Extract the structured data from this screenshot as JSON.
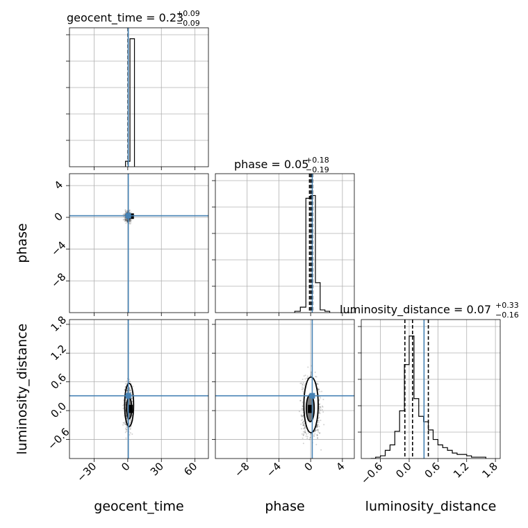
{
  "chart_data": {
    "type": "corner",
    "truth_color": "#4682b4",
    "line_color": "#000000",
    "parameters": [
      {
        "name": "geocent_time",
        "title_main": "geocent_time = 0.23",
        "title_plus": "+0.09",
        "title_minus": "−0.09",
        "median": 0.23,
        "q_low": 0.14,
        "q_high": 0.32,
        "truth": 0.5,
        "range": [
          -52,
          72
        ],
        "ticks": [
          -30,
          0,
          30,
          60
        ],
        "tick_labels": [
          "−30",
          "0",
          "30",
          "60"
        ],
        "hist_bins": [
          -2,
          2,
          6
        ],
        "hist_values": [
          0.04,
          0.94
        ]
      },
      {
        "name": "phase",
        "title_main": "phase = 0.05",
        "title_plus": "+0.18",
        "title_minus": "−0.19",
        "median": 0.05,
        "q_low": -0.14,
        "q_high": 0.23,
        "truth": 0.2,
        "range": [
          -12,
          5.5
        ],
        "ticks": [
          -8,
          -4,
          0,
          4
        ],
        "tick_labels": [
          "−8",
          "−4",
          "0",
          "4"
        ],
        "hist_bins": [
          -2,
          -1.3,
          -0.6,
          0,
          0.6,
          1.2,
          1.8,
          2.4
        ],
        "hist_values": [
          0.01,
          0.04,
          0.84,
          0.86,
          0.22,
          0.02,
          0.01
        ],
        "y_ticks": [
          4,
          0,
          -4,
          -8
        ],
        "y_tick_labels": [
          "4",
          "0",
          "−4",
          "−8"
        ]
      },
      {
        "name": "luminosity_distance",
        "title_main": "luminosity_distance = 0.07",
        "title_plus": "+0.33",
        "title_minus": "−0.16",
        "median": 0.07,
        "q_low": -0.09,
        "q_high": 0.4,
        "truth": 0.31,
        "range": [
          -1.0,
          1.9
        ],
        "ticks": [
          -0.6,
          0.0,
          0.6,
          1.2,
          1.8
        ],
        "tick_labels": [
          "−0.6",
          "0.0",
          "0.6",
          "1.2",
          "1.8"
        ],
        "hist_bins": [
          -0.8,
          -0.7,
          -0.6,
          -0.5,
          -0.4,
          -0.3,
          -0.2,
          -0.1,
          0.0,
          0.1,
          0.2,
          0.3,
          0.4,
          0.5,
          0.6,
          0.7,
          0.8,
          0.9,
          1.0,
          1.1,
          1.2,
          1.3,
          1.4,
          1.5,
          1.6
        ],
        "hist_values": [
          0.0,
          0.01,
          0.02,
          0.06,
          0.1,
          0.2,
          0.35,
          0.69,
          0.9,
          0.44,
          0.31,
          0.27,
          0.21,
          0.14,
          0.1,
          0.08,
          0.06,
          0.04,
          0.03,
          0.03,
          0.02,
          0.01,
          0.01,
          0.01
        ],
        "y_ticks": [
          1.8,
          1.2,
          0.6,
          0.0,
          -0.6
        ],
        "y_tick_labels": [
          "1.8",
          "1.2",
          "0.6",
          "0.0",
          "−0.6"
        ]
      }
    ]
  }
}
